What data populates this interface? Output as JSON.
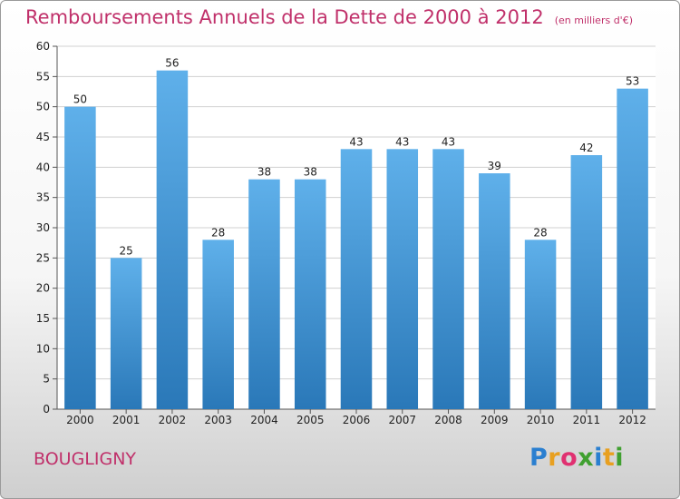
{
  "title": "Remboursements Annuels de la Dette de 2000 à 2012",
  "subtitle": "(en milliers d'€)",
  "commune": "BOUGLIGNY",
  "logo": [
    "P",
    "r",
    "o",
    "x",
    "i",
    "t",
    "i"
  ],
  "logo_colors": [
    "#2a7fd0",
    "#e8a020",
    "#e03070",
    "#40a030",
    "#2a7fd0",
    "#e8a020",
    "#40a030"
  ],
  "colors": {
    "bar_top": "#5fb0ea",
    "bar_bottom": "#2a78b8",
    "title": "#c0306a"
  },
  "chart_data": {
    "type": "bar",
    "categories": [
      "2000",
      "2001",
      "2002",
      "2003",
      "2004",
      "2005",
      "2006",
      "2007",
      "2008",
      "2009",
      "2010",
      "2011",
      "2012"
    ],
    "values": [
      50,
      25,
      56,
      28,
      38,
      38,
      43,
      43,
      43,
      39,
      28,
      42,
      53
    ],
    "ylim": [
      0,
      60
    ],
    "yticks": [
      0,
      5,
      10,
      15,
      20,
      25,
      30,
      35,
      40,
      45,
      50,
      55,
      60
    ],
    "grid": true,
    "data_labels": true
  }
}
